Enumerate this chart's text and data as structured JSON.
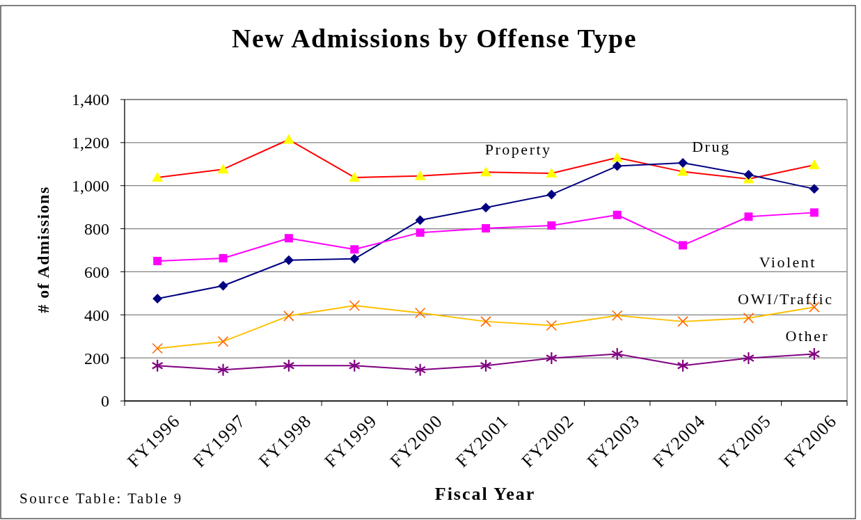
{
  "chart_data": {
    "type": "line",
    "title": "New Admissions by Offense Type",
    "xlabel": "Fiscal Year",
    "ylabel": "# of Admissions",
    "categories": [
      "FY1996",
      "FY1997",
      "FY1998",
      "FY1999",
      "FY2000",
      "FY2001",
      "FY2002",
      "FY2003",
      "FY2004",
      "FY2005",
      "FY2006"
    ],
    "series": [
      {
        "name": "Property",
        "color": "#ff0000",
        "marker": "triangle",
        "colors": [
          "#ffff00",
          "#ffff00",
          "#ffff00",
          "#ffff00",
          "#ffff00",
          "#ffff00",
          "#ffff00",
          "#ffff00",
          "#ffff00",
          "#ffff00",
          "#ffff00"
        ],
        "values": [
          1038,
          1076,
          1214,
          1038,
          1045,
          1063,
          1057,
          1130,
          1065,
          1031,
          1096
        ]
      },
      {
        "name": "Drug",
        "color": "#000080",
        "marker": "diamond",
        "values": [
          475,
          535,
          654,
          660,
          840,
          898,
          959,
          1091,
          1106,
          1051,
          985
        ]
      },
      {
        "name": "Violent",
        "color": "#ff00ff",
        "marker": "square",
        "values": [
          650,
          663,
          756,
          704,
          782,
          802,
          815,
          864,
          723,
          856,
          875
        ]
      },
      {
        "name": "OWI/Traffic",
        "color": "#ffc000",
        "marker": "cross",
        "colors": [
          "#ff6600",
          "#ff6600",
          "#ff6600",
          "#ff6600",
          "#ff6600",
          "#ff6600",
          "#ff6600",
          "#ff6600",
          "#ff6600",
          "#ff6600",
          "#ff6600"
        ],
        "values": [
          244,
          276,
          395,
          443,
          409,
          369,
          351,
          397,
          369,
          385,
          436
        ]
      },
      {
        "name": "Other",
        "color": "#800080",
        "marker": "star",
        "values": [
          164,
          145,
          164,
          164,
          145,
          164,
          199,
          218,
          164,
          199,
          218
        ]
      }
    ],
    "ylim": [
      0,
      1400
    ],
    "yticks": [
      0,
      200,
      400,
      600,
      800,
      {
        "value": 1000,
        "label": "1,000"
      },
      {
        "value": 1200,
        "label": "1,200"
      },
      {
        "value": 1400,
        "label": "1,400"
      }
    ],
    "grid": "y",
    "legend": false,
    "line_style": "solid",
    "annotations": [
      "Source Table: Table 9"
    ]
  }
}
